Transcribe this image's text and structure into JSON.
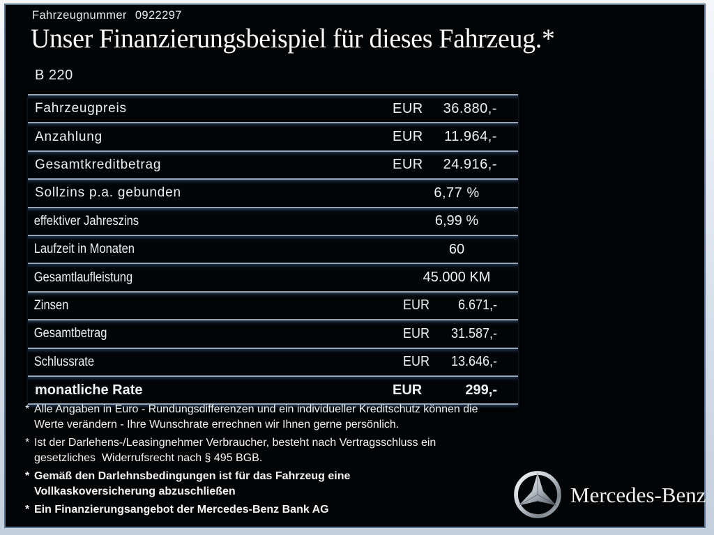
{
  "header": {
    "vehicle_number_label": "Fahrzeugnummer",
    "vehicle_number": "0922297",
    "title": "Unser Finanzierungsbeispiel für dieses Fahrzeug.*",
    "model": "B 220"
  },
  "table": {
    "rows": [
      {
        "label": "Fahrzeugpreis",
        "currency": "EUR",
        "value": "36.880,-",
        "label_style": "wide",
        "value_style": "wide"
      },
      {
        "label": "Anzahlung",
        "currency": "EUR",
        "value": "11.964,-",
        "label_style": "wide",
        "value_style": "wide"
      },
      {
        "label": "Gesamtkreditbetrag",
        "currency": "EUR",
        "value": "24.916,-",
        "label_style": "wide",
        "value_style": "wide"
      },
      {
        "label": "Sollzins p.a. gebunden",
        "currency": "",
        "value": "6,77 %",
        "label_style": "wide",
        "value_style": "wide"
      },
      {
        "label": "effektiver Jahreszins",
        "currency": "",
        "value": "6,99 %",
        "label_style": "narrow",
        "value_style": "normal"
      },
      {
        "label": "Laufzeit in Monaten",
        "currency": "",
        "value": "60",
        "label_style": "narrow",
        "value_style": "normal"
      },
      {
        "label": "Gesamtlaufleistung",
        "currency": "",
        "value": "45.000 KM",
        "label_style": "narrow",
        "value_style": "normal"
      },
      {
        "label": "Zinsen",
        "currency": "EUR",
        "value": "6.671,-",
        "label_style": "narrow",
        "value_style": "narrow"
      },
      {
        "label": "Gesamtbetrag",
        "currency": "EUR",
        "value": "31.587,-",
        "label_style": "narrow",
        "value_style": "narrow"
      },
      {
        "label": "Schlussrate",
        "currency": "EUR",
        "value": "13.646,-",
        "label_style": "narrow",
        "value_style": "narrow"
      },
      {
        "label": "monatliche Rate",
        "currency": "EUR",
        "value": "299,-",
        "label_style": "bold",
        "value_style": "bold"
      }
    ]
  },
  "footnotes": [
    {
      "bold": false,
      "lines": [
        "Alle Angaben in Euro - Rundungsdifferenzen und ein individueller Kreditschutz können die",
        "Werte verändern - Ihre Wunschrate errechnen wir Ihnen gerne persönlich."
      ]
    },
    {
      "bold": false,
      "lines": [
        "Ist der Darlehens-/Leasingnehmer Verbraucher, besteht nach Vertragsschluss ein",
        "gesetzliches  Widerrufsrecht nach § 495 BGB."
      ]
    },
    {
      "bold": true,
      "lines": [
        "Gemäß den Darlehnsbedingungen ist für das Fahrzeug eine",
        "Vollkaskoversicherung abzuschließen"
      ]
    },
    {
      "bold": true,
      "lines": [
        "Ein Finanzierungsangebot der Mercedes-Benz Bank AG"
      ]
    }
  ],
  "footnote_marker": "*",
  "brand": {
    "logo": "mercedes-star-icon",
    "name": "Mercedes-Benz"
  },
  "colors": {
    "page_background": "#020406",
    "frame_light": "#e2e9f1",
    "frame_line": "#5e7a96",
    "table_rule": "#96a5b8",
    "rule_glow": "#385a82",
    "text": "#eef0f2"
  }
}
